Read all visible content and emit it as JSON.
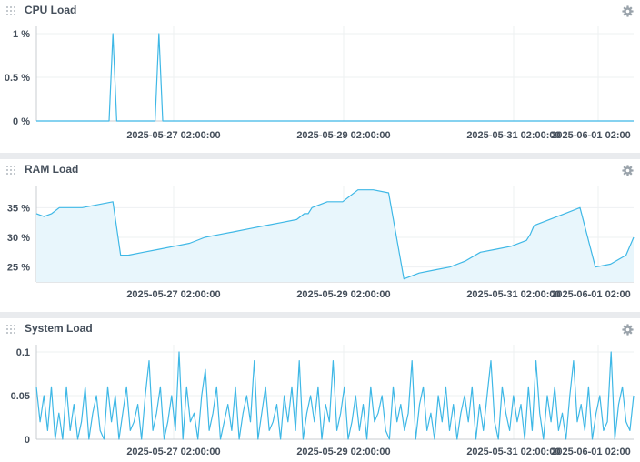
{
  "colors": {
    "line": "#3fb8e6",
    "fill": "#e8f6fc",
    "grid": "#eef0f2",
    "axis": "#c8ccd0",
    "text": "#454f5b",
    "icon": "#9aa3ab"
  },
  "x_labels": [
    "2025-05-27 02:00:00",
    "2025-05-29 02:00:00",
    "2025-05-31 02:00:00",
    "2025-06-01 02:00"
  ],
  "panels": [
    {
      "title": "CPU Load",
      "chart_data": {
        "type": "line",
        "title": "",
        "xlabel": "",
        "ylabel": "",
        "x_range": [
          "2025-05-26 00:00",
          "2025-06-01 12:00"
        ],
        "ylim": [
          0,
          1
        ],
        "y_ticks": [
          0,
          0.5,
          1
        ],
        "y_tick_labels": [
          "0 %",
          "0.5 %",
          "1 %"
        ],
        "x_tick_labels": [
          "2025-05-27 02:00:00",
          "2025-05-29 02:00:00",
          "2025-05-31 02:00:00",
          "2025-06-01 02:00"
        ],
        "area": false,
        "grid": true,
        "x": [
          "2025-05-26 00:00",
          "2025-05-26 19:00",
          "2025-05-26 20:00",
          "2025-05-26 21:00",
          "2025-05-27 07:00",
          "2025-05-27 08:00",
          "2025-05-27 09:00",
          "2025-06-01 12:00"
        ],
        "values": [
          0,
          0,
          1,
          0,
          0,
          1,
          0,
          0
        ]
      }
    },
    {
      "title": "RAM Load",
      "chart_data": {
        "type": "area",
        "title": "",
        "xlabel": "",
        "ylabel": "",
        "x_range": [
          "2025-05-26 00:00",
          "2025-06-01 12:00"
        ],
        "ylim": [
          22.5,
          37.5
        ],
        "y_ticks": [
          25,
          30,
          35
        ],
        "y_tick_labels": [
          "25 %",
          "30 %",
          "35 %"
        ],
        "x_tick_labels": [
          "2025-05-27 02:00:00",
          "2025-05-29 02:00:00",
          "2025-05-31 02:00:00",
          "2025-06-01 02:00"
        ],
        "area": true,
        "grid": true,
        "x": [
          "2025-05-26 00:00",
          "2025-05-26 02:00",
          "2025-05-26 04:00",
          "2025-05-26 06:00",
          "2025-05-26 08:00",
          "2025-05-26 12:00",
          "2025-05-26 20:00",
          "2025-05-26 22:00",
          "2025-05-27 00:00",
          "2025-05-27 04:00",
          "2025-05-27 08:00",
          "2025-05-27 12:00",
          "2025-05-27 16:00",
          "2025-05-27 20:00",
          "2025-05-28 00:00",
          "2025-05-28 04:00",
          "2025-05-28 08:00",
          "2025-05-28 12:00",
          "2025-05-28 16:00",
          "2025-05-28 20:00",
          "2025-05-28 22:00",
          "2025-05-28 23:00",
          "2025-05-29 00:00",
          "2025-05-29 04:00",
          "2025-05-29 08:00",
          "2025-05-29 12:00",
          "2025-05-29 16:00",
          "2025-05-29 20:00",
          "2025-05-30 00:00",
          "2025-05-30 04:00",
          "2025-05-30 08:00",
          "2025-05-30 12:00",
          "2025-05-30 16:00",
          "2025-05-30 20:00",
          "2025-05-31 00:00",
          "2025-05-31 04:00",
          "2025-05-31 08:00",
          "2025-05-31 09:00",
          "2025-05-31 10:00",
          "2025-05-31 14:00",
          "2025-05-31 18:00",
          "2025-05-31 22:00",
          "2025-06-01 02:00",
          "2025-06-01 06:00",
          "2025-06-01 10:00",
          "2025-06-01 12:00"
        ],
        "values": [
          34,
          33.5,
          34,
          35,
          35,
          35,
          36,
          27,
          27,
          27.5,
          28,
          28.5,
          29,
          30,
          30.5,
          31,
          31.5,
          32,
          32.5,
          33,
          34,
          34,
          35,
          36,
          36,
          38,
          38,
          37.5,
          23,
          24,
          24.5,
          25,
          26,
          27.5,
          28,
          28.5,
          29.5,
          30.5,
          32,
          33,
          34,
          35,
          25,
          25.5,
          27,
          30
        ]
      }
    },
    {
      "title": "System Load",
      "chart_data": {
        "type": "line",
        "title": "",
        "xlabel": "",
        "ylabel": "",
        "x_range": [
          "2025-05-26 00:00",
          "2025-06-01 12:00"
        ],
        "ylim": [
          0,
          0.1
        ],
        "y_ticks": [
          0,
          0.05,
          0.1
        ],
        "y_tick_labels": [
          "0",
          "0.05",
          "0.1"
        ],
        "x_tick_labels": [
          "2025-05-27 02:00:00",
          "2025-05-29 02:00:00",
          "2025-05-31 02:00:00",
          "2025-06-01 02:00"
        ],
        "area": false,
        "grid": true,
        "sampling": "~40 min, noisy",
        "values": [
          0.06,
          0.02,
          0.05,
          0.01,
          0.06,
          0.0,
          0.03,
          0.0,
          0.06,
          0.01,
          0.04,
          0.0,
          0.02,
          0.06,
          0.0,
          0.03,
          0.05,
          0.01,
          0.0,
          0.06,
          0.02,
          0.05,
          0.0,
          0.03,
          0.06,
          0.01,
          0.02,
          0.04,
          0.0,
          0.05,
          0.09,
          0.01,
          0.03,
          0.06,
          0.0,
          0.02,
          0.05,
          0.01,
          0.1,
          0.0,
          0.06,
          0.02,
          0.03,
          0.0,
          0.05,
          0.08,
          0.01,
          0.03,
          0.06,
          0.0,
          0.02,
          0.04,
          0.01,
          0.06,
          0.0,
          0.03,
          0.05,
          0.02,
          0.09,
          0.0,
          0.03,
          0.06,
          0.01,
          0.02,
          0.04,
          0.0,
          0.05,
          0.02,
          0.06,
          0.01,
          0.09,
          0.0,
          0.03,
          0.05,
          0.02,
          0.06,
          0.0,
          0.04,
          0.02,
          0.09,
          0.01,
          0.03,
          0.06,
          0.0,
          0.02,
          0.05,
          0.01,
          0.04,
          0.0,
          0.06,
          0.02,
          0.03,
          0.05,
          0.01,
          0.0,
          0.06,
          0.02,
          0.04,
          0.01,
          0.03,
          0.09,
          0.0,
          0.04,
          0.06,
          0.01,
          0.03,
          0.0,
          0.05,
          0.02,
          0.06,
          0.01,
          0.04,
          0.0,
          0.03,
          0.05,
          0.02,
          0.06,
          0.0,
          0.04,
          0.01,
          0.05,
          0.09,
          0.02,
          0.0,
          0.06,
          0.03,
          0.01,
          0.05,
          0.02,
          0.04,
          0.0,
          0.06,
          0.01,
          0.09,
          0.03,
          0.0,
          0.05,
          0.02,
          0.06,
          0.01,
          0.03,
          0.0,
          0.05,
          0.09,
          0.02,
          0.04,
          0.01,
          0.06,
          0.0,
          0.03,
          0.05,
          0.01,
          0.02,
          0.1,
          0.0,
          0.04,
          0.06,
          0.02,
          0.01,
          0.05
        ]
      }
    }
  ]
}
